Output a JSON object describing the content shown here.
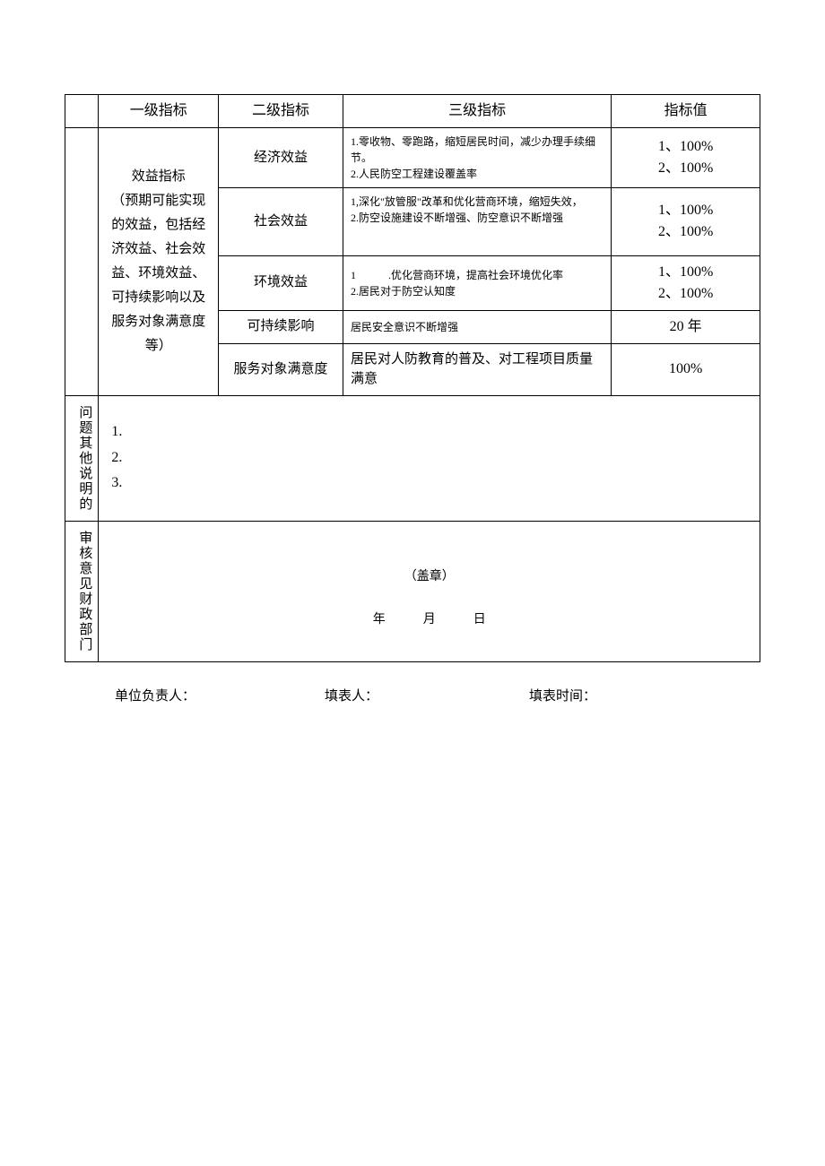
{
  "headers": {
    "level1": "一级指标",
    "level2": "二级指标",
    "level3": "三级指标",
    "value": "指标值"
  },
  "benefit_indicator": {
    "title": "效益指标\n（预期可能实现的效益，包括经济效益、社会效益、环境效益、\n可持续影响以及服务对象满意度等）",
    "rows": [
      {
        "name": "经济效益",
        "desc": "1.零收物、零跑路，缩短居民时间，减少办理手续细节。\n2.人民防空工程建设覆盖率",
        "value": "1、100%\n2、100%"
      },
      {
        "name": "社会效益",
        "desc": "1,深化\"放管服\"改革和优化营商环境，缩短失效，\n2.防空设施建设不断增强、防空意识不断增强",
        "value": "1、100%\n2、100%"
      },
      {
        "name": "环境效益",
        "desc": "1　　　.优化营商环境，提高社会环境优化率\n2.居民对于防空认知度",
        "value": "1、100%\n2、100%"
      },
      {
        "name": "可持续影响",
        "desc": "居民安全意识不断增强",
        "value": "20 年"
      },
      {
        "name": "服务对象满意度",
        "desc": "居民对人防教育的普及、对工程项目质量满意",
        "value": "100%"
      }
    ]
  },
  "other_notes": {
    "label": "问题其他说明的",
    "content": "1.\n2.\n3."
  },
  "audit": {
    "label": "审核意见财政部门",
    "stamp": "（盖章）",
    "date": "年　　　月　　　日"
  },
  "footer": {
    "person1": "单位负责人：",
    "person2": "填表人：",
    "time": "填表时间："
  }
}
